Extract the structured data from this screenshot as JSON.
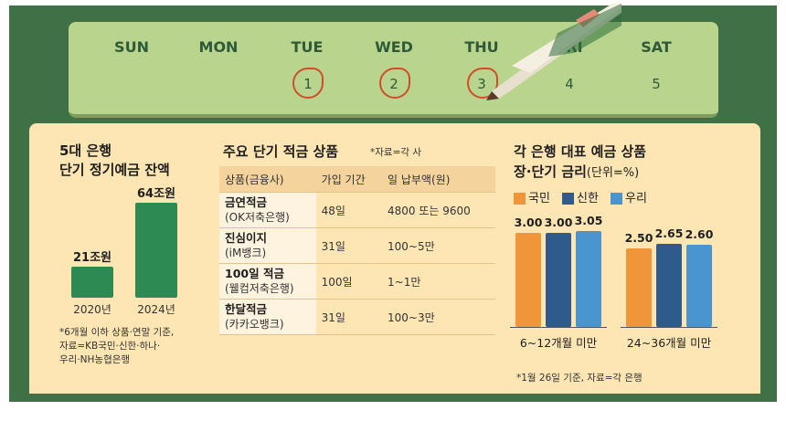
{
  "calendar": {
    "days": [
      "SUN",
      "MON",
      "TUE",
      "WED",
      "THU",
      "FRI",
      "SAT"
    ],
    "dates": [
      "1",
      "2",
      "3",
      "4",
      "5"
    ]
  },
  "balance": {
    "title_line1": "5대 은행",
    "title_line2": "단기 정기예금 잔액",
    "note_line1": "*6개월 이하 상품·연말 기준,",
    "note_line2": "자료=KB국민·신한·하나·",
    "note_line3": "우리·NH농협은행"
  },
  "products": {
    "title": "주요 단기 적금 상품",
    "source": "*자료=각 사",
    "headers": [
      "상품(금융사)",
      "가입 기간",
      "일 납부액(원)"
    ],
    "rows": [
      {
        "name": "금연적금",
        "bank": "(OK저축은행)",
        "period": "48일",
        "amount": "4800 또는 9600"
      },
      {
        "name": "진심이지",
        "bank": "(iM뱅크)",
        "period": "31일",
        "amount": "100~5만"
      },
      {
        "name": "100일 적금",
        "bank": "(웰컴저축은행)",
        "period": "100일",
        "amount": "1~1만"
      },
      {
        "name": "한달적금",
        "bank": "(카카오뱅크)",
        "period": "31일",
        "amount": "100~3만"
      }
    ]
  },
  "rates": {
    "title_line1": "각 은행 대표 예금 상품",
    "title_line2": "장·단기 금리",
    "unit": "(단위=%)",
    "note": "*1월 26일 기준, 자료=각 은행"
  },
  "colors": {
    "balance_bar": "#2d8a52",
    "kookmin": "#f1953a",
    "shinhan": "#2f5b8c",
    "woori": "#4a94cf"
  },
  "chart_data": [
    {
      "type": "bar",
      "title": "5대 은행 단기 정기예금 잔액",
      "categories": [
        "2020년",
        "2024년"
      ],
      "values": [
        21,
        64
      ],
      "value_labels": [
        "21조원",
        "64조원"
      ],
      "ylim": [
        0,
        70
      ]
    },
    {
      "type": "bar",
      "title": "각 은행 대표 예금 상품 장·단기 금리",
      "unit": "(단위=%)",
      "categories": [
        "6~12개월 미만",
        "24~36개월 미만"
      ],
      "series": [
        {
          "name": "국민",
          "values": [
            3.0,
            2.5
          ],
          "labels": [
            "3.00",
            "2.50"
          ]
        },
        {
          "name": "신한",
          "values": [
            3.0,
            2.65
          ],
          "labels": [
            "3.00",
            "2.65"
          ]
        },
        {
          "name": "우리",
          "values": [
            3.05,
            2.6
          ],
          "labels": [
            "3.05",
            "2.60"
          ]
        }
      ],
      "ylim": [
        0,
        3.2
      ],
      "legend": "top"
    }
  ]
}
